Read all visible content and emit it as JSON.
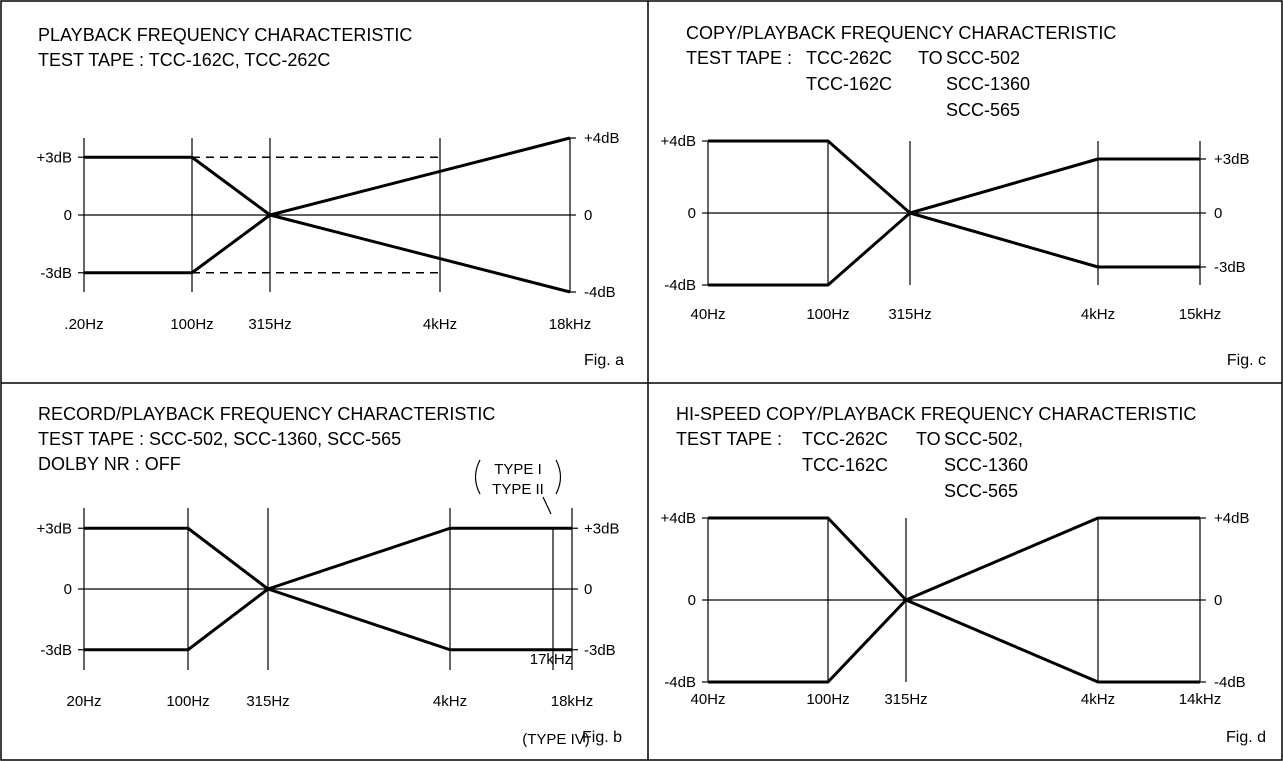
{
  "chart_data": [
    {
      "type": "line",
      "caption": "Fig. a",
      "title_lines": [
        "PLAYBACK FREQUENCY CHARACTERISTIC",
        "TEST TAPE : TCC-162C, TCC-262C"
      ],
      "x_ticks": [
        ".20Hz",
        "100Hz",
        "315Hz",
        "4kHz",
        "18kHz"
      ],
      "y_left_ticks": [
        {
          "label": "+3dB",
          "value": 3
        },
        {
          "label": "0",
          "value": 0
        },
        {
          "label": "-3dB",
          "value": -3
        }
      ],
      "y_right_ticks": [
        {
          "label": "+4dB",
          "value": 4
        },
        {
          "label": "0",
          "value": 0
        },
        {
          "label": "-4dB",
          "value": -4
        }
      ],
      "ylim": [
        -4,
        4
      ],
      "series": [
        {
          "style": "solid",
          "x": [
            "20Hz",
            "100Hz",
            "315Hz",
            "18kHz"
          ],
          "y": [
            3,
            3,
            0,
            4
          ]
        },
        {
          "style": "solid",
          "x": [
            "20Hz",
            "100Hz",
            "315Hz",
            "18kHz"
          ],
          "y": [
            -3,
            -3,
            0,
            -4
          ]
        },
        {
          "style": "dashed",
          "x": [
            "100Hz",
            "4kHz"
          ],
          "y": [
            3,
            3
          ]
        },
        {
          "style": "dashed",
          "x": [
            "100Hz",
            "4kHz"
          ],
          "y": [
            -3,
            -3
          ]
        }
      ]
    },
    {
      "type": "line",
      "caption": "Fig. c",
      "title_lines": [
        "COPY/PLAYBACK FREQUENCY CHARACTERISTIC"
      ],
      "tape_rows": [
        {
          "label": "TEST TAPE :",
          "src": "TCC-262C",
          "to": "TO",
          "dst": "SCC-502"
        },
        {
          "label": "",
          "src": "TCC-162C",
          "to": "",
          "dst": "SCC-1360"
        },
        {
          "label": "",
          "src": "",
          "to": "",
          "dst": "SCC-565"
        }
      ],
      "x_ticks": [
        "40Hz",
        "100Hz",
        "315Hz",
        "4kHz",
        "15kHz"
      ],
      "y_left_ticks": [
        {
          "label": "+4dB",
          "value": 4
        },
        {
          "label": "0",
          "value": 0
        },
        {
          "label": "-4dB",
          "value": -4
        }
      ],
      "y_right_ticks": [
        {
          "label": "+3dB",
          "value": 3
        },
        {
          "label": "0",
          "value": 0
        },
        {
          "label": "-3dB",
          "value": -3
        }
      ],
      "ylim": [
        -4,
        4
      ],
      "series": [
        {
          "style": "solid",
          "x": [
            "40Hz",
            "100Hz",
            "315Hz",
            "4kHz",
            "15kHz"
          ],
          "y": [
            4,
            4,
            0,
            3,
            3
          ]
        },
        {
          "style": "solid",
          "x": [
            "40Hz",
            "100Hz",
            "315Hz",
            "4kHz",
            "15kHz"
          ],
          "y": [
            -4,
            -4,
            0,
            -3,
            -3
          ]
        }
      ]
    },
    {
      "type": "line",
      "caption": "Fig. b",
      "title_lines": [
        "RECORD/PLAYBACK FREQUENCY CHARACTERISTIC",
        "TEST TAPE : SCC-502, SCC-1360, SCC-565",
        "DOLBY NR : OFF"
      ],
      "x_ticks": [
        "20Hz",
        "100Hz",
        "315Hz",
        "4kHz",
        "18kHz"
      ],
      "y_left_ticks": [
        {
          "label": "+3dB",
          "value": 3
        },
        {
          "label": "0",
          "value": 0
        },
        {
          "label": "-3dB",
          "value": -3
        }
      ],
      "y_right_ticks": [
        {
          "label": "+3dB",
          "value": 3
        },
        {
          "label": "0",
          "value": 0
        },
        {
          "label": "-3dB",
          "value": -3
        }
      ],
      "ylim": [
        -4,
        4
      ],
      "annotations": {
        "marker_label": "17kHz",
        "type_upper_lines": [
          "TYPE I",
          "TYPE II"
        ],
        "type_lower": "(TYPE IV)"
      },
      "series": [
        {
          "style": "solid",
          "x": [
            "20Hz",
            "100Hz",
            "315Hz",
            "4kHz",
            "18kHz"
          ],
          "y": [
            3,
            3,
            0,
            3,
            3
          ]
        },
        {
          "style": "solid",
          "x": [
            "20Hz",
            "100Hz",
            "315Hz",
            "4kHz",
            "18kHz"
          ],
          "y": [
            -3,
            -3,
            0,
            -3,
            -3
          ]
        }
      ]
    },
    {
      "type": "line",
      "caption": "Fig. d",
      "title_lines": [
        "HI-SPEED COPY/PLAYBACK FREQUENCY CHARACTERISTIC"
      ],
      "tape_rows": [
        {
          "label": "TEST TAPE :",
          "src": "TCC-262C",
          "to": "TO",
          "dst": "SCC-502,"
        },
        {
          "label": "",
          "src": "TCC-162C",
          "to": "",
          "dst": "SCC-1360"
        },
        {
          "label": "",
          "src": "",
          "to": "",
          "dst": "SCC-565"
        }
      ],
      "x_ticks": [
        "40Hz",
        "100Hz",
        "315Hz",
        "4kHz",
        "14kHz"
      ],
      "y_left_ticks": [
        {
          "label": "+4dB",
          "value": 4
        },
        {
          "label": "0",
          "value": 0
        },
        {
          "label": "-4dB",
          "value": -4
        }
      ],
      "y_right_ticks": [
        {
          "label": "+4dB",
          "value": 4
        },
        {
          "label": "0",
          "value": 0
        },
        {
          "label": "-4dB",
          "value": -4
        }
      ],
      "ylim": [
        -4,
        4
      ],
      "series": [
        {
          "style": "solid",
          "x": [
            "40Hz",
            "100Hz",
            "315Hz",
            "4kHz",
            "14kHz"
          ],
          "y": [
            4,
            4,
            0,
            4,
            4
          ]
        },
        {
          "style": "solid",
          "x": [
            "40Hz",
            "100Hz",
            "315Hz",
            "4kHz",
            "14kHz"
          ],
          "y": [
            -4,
            -4,
            0,
            -4,
            -4
          ]
        }
      ]
    }
  ]
}
